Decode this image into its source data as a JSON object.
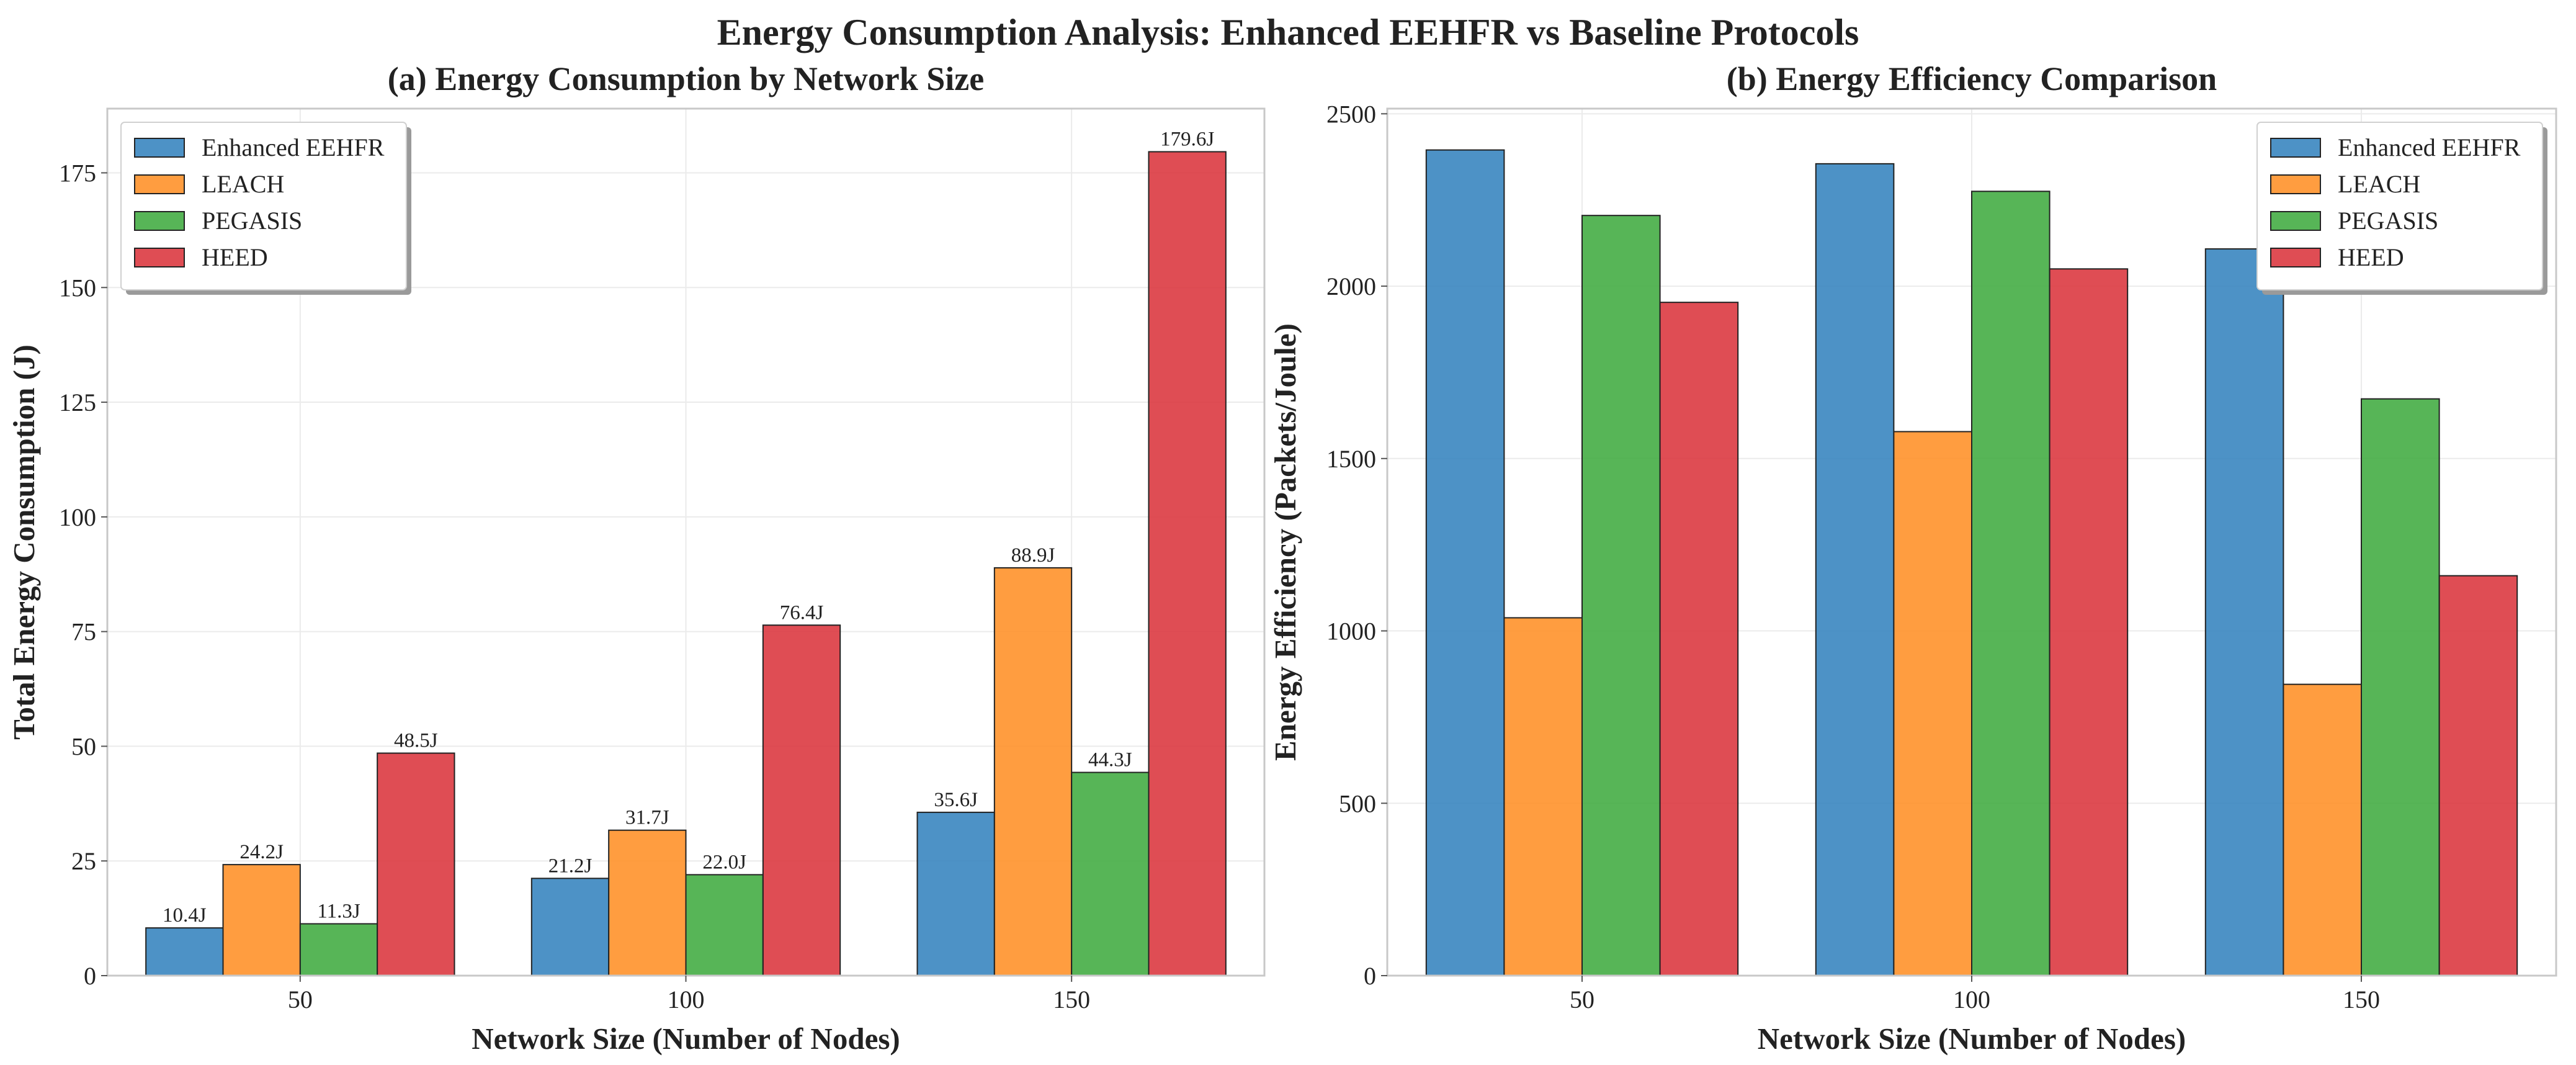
{
  "figure": {
    "suptitle": "Energy Consumption Analysis: Enhanced EEHFR vs Baseline Protocols"
  },
  "colors": {
    "Enhanced EEHFR": "#3a86c0",
    "LEACH": "#ff922b",
    "PEGASIS": "#45ad45",
    "HEED": "#dc3a41"
  },
  "chart_data": [
    {
      "type": "bar",
      "title": "(a) Energy Consumption by Network Size",
      "xlabel": "Network Size (Number of Nodes)",
      "ylabel": "Total Energy Consumption (J)",
      "categories": [
        "50",
        "100",
        "150"
      ],
      "ylim": [
        0,
        189
      ],
      "yticks": [
        0,
        25,
        50,
        75,
        100,
        125,
        150,
        175
      ],
      "grid": true,
      "legend_position": "top-left",
      "series": [
        {
          "name": "Enhanced EEHFR",
          "values": [
            10.4,
            21.2,
            35.6
          ],
          "labels": [
            "10.4J",
            "21.2J",
            "35.6J"
          ]
        },
        {
          "name": "LEACH",
          "values": [
            24.2,
            31.7,
            88.9
          ],
          "labels": [
            "24.2J",
            "31.7J",
            "88.9J"
          ]
        },
        {
          "name": "PEGASIS",
          "values": [
            11.3,
            22.0,
            44.3
          ],
          "labels": [
            "11.3J",
            "22.0J",
            "44.3J"
          ]
        },
        {
          "name": "HEED",
          "values": [
            48.5,
            76.4,
            179.6
          ],
          "labels": [
            "48.5J",
            "76.4J",
            "179.6J"
          ]
        }
      ]
    },
    {
      "type": "bar",
      "title": "(b) Energy Efficiency Comparison",
      "xlabel": "Network Size (Number of Nodes)",
      "ylabel": "Energy Efficiency (Packets/Joule)",
      "categories": [
        "50",
        "100",
        "150"
      ],
      "ylim": [
        0,
        2515
      ],
      "yticks": [
        0,
        500,
        1000,
        1500,
        2000,
        2500
      ],
      "grid": true,
      "legend_position": "top-right",
      "series": [
        {
          "name": "Enhanced EEHFR",
          "values": [
            2395,
            2355,
            2108
          ]
        },
        {
          "name": "LEACH",
          "values": [
            1038,
            1578,
            845
          ]
        },
        {
          "name": "PEGASIS",
          "values": [
            2205,
            2275,
            1673
          ]
        },
        {
          "name": "HEED",
          "values": [
            1953,
            2050,
            1160
          ]
        }
      ]
    }
  ]
}
